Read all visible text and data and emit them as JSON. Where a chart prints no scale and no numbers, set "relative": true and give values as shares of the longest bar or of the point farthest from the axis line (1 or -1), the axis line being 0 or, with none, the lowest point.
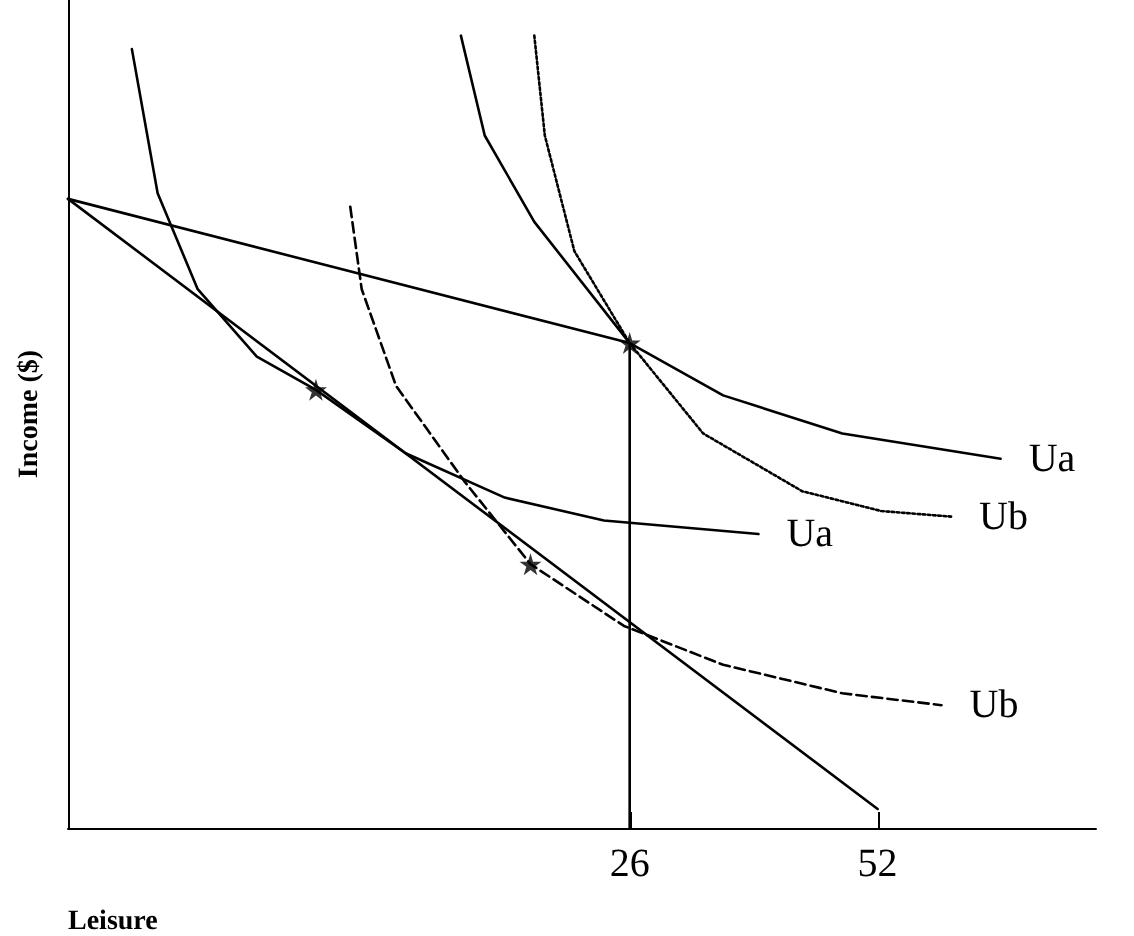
{
  "chart_data": {
    "type": "line",
    "relative": true,
    "xlabel": "Leisure",
    "ylabel": "Income ($)",
    "xlim": [
      -32.9,
      74.9
    ],
    "xticks": [
      26,
      52
    ],
    "grid": false,
    "legend": false,
    "series": [
      {
        "color": "#000000",
        "line_style": "solid",
        "x": [
          -32.9,
          52
        ],
        "values": [
          0.794,
          0.024
        ]
      },
      {
        "color": "#000000",
        "line_style": "solid",
        "x": [
          -32.9,
          26,
          26
        ],
        "values": [
          0.794,
          0.612,
          0
        ]
      },
      {
        "name": "Ua",
        "color": "#000000",
        "line_style": "solid",
        "x": [
          -26.2,
          -23.5,
          -19.3,
          -13.1,
          -6.9,
          2.5,
          12.9,
          23.3,
          39.5
        ],
        "values": [
          0.983,
          0.801,
          0.68,
          0.595,
          0.553,
          0.473,
          0.417,
          0.388,
          0.371
        ]
      },
      {
        "name": "Ua",
        "color": "#000000",
        "line_style": "solid",
        "x": [
          8.3,
          10.8,
          16.0,
          26.0,
          35.8,
          48.3,
          64.9
        ],
        "values": [
          1,
          0.874,
          0.765,
          0.612,
          0.546,
          0.498,
          0.466
        ]
      },
      {
        "name": "Ub",
        "color": "#000000",
        "line_style": "dashed",
        "x": [
          -3.3,
          -2.1,
          1.5,
          8.7,
          15.6,
          25.4,
          35.8,
          48.3,
          58.7
        ],
        "values": [
          0.784,
          0.68,
          0.558,
          0.437,
          0.333,
          0.255,
          0.206,
          0.17,
          0.155
        ]
      },
      {
        "name": "Ub",
        "color": "#000000",
        "line_style": "dotted",
        "x": [
          16.0,
          17.1,
          20.2,
          26.0,
          33.7,
          44.1,
          52.4,
          59.7
        ],
        "values": [
          1,
          0.874,
          0.728,
          0.612,
          0.498,
          0.425,
          0.4,
          0.393
        ]
      },
      {
        "type": "scatter",
        "marker": "star",
        "color": "#000000",
        "x": [
          -6.9,
          15.6,
          26
        ],
        "values": [
          0.553,
          0.333,
          0.612
        ]
      }
    ]
  }
}
